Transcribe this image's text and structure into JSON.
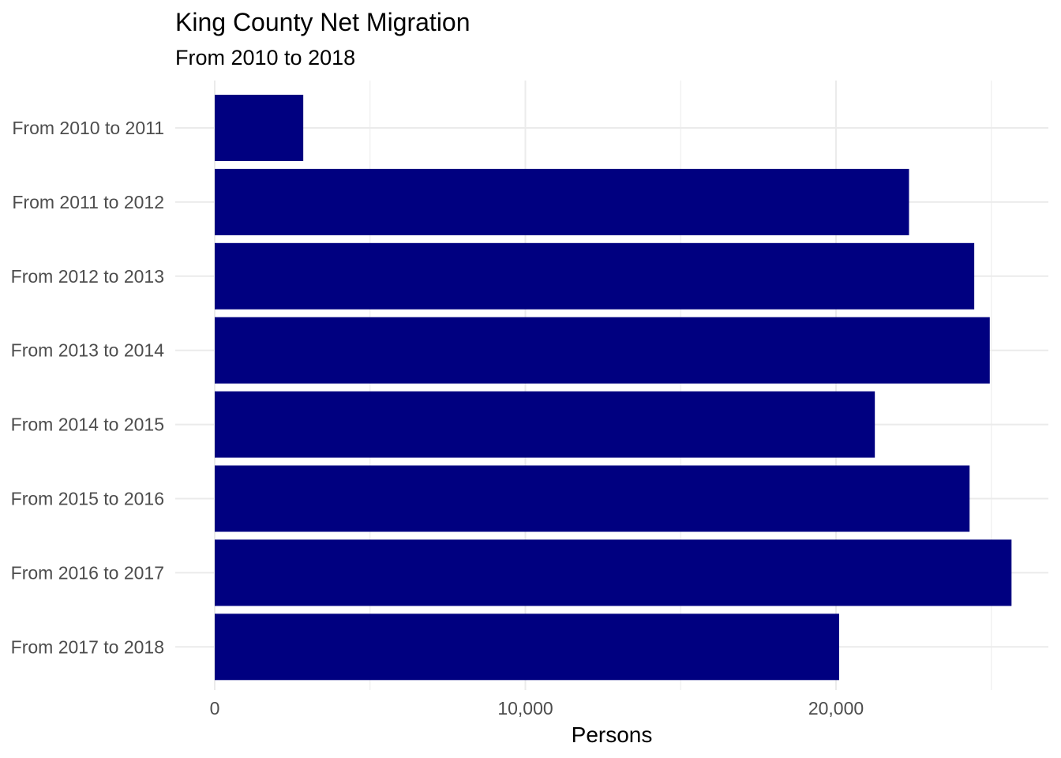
{
  "chart_data": {
    "type": "bar",
    "orientation": "horizontal",
    "title": "King County Net Migration",
    "subtitle": "From 2010 to 2018",
    "xlabel": "Persons",
    "ylabel": "",
    "categories": [
      "From 2010 to 2011",
      "From 2011 to 2012",
      "From 2012 to 2013",
      "From 2013 to 2014",
      "From 2014 to 2015",
      "From 2015 to 2016",
      "From 2016 to 2017",
      "From 2017 to 2018"
    ],
    "values": [
      2850,
      22350,
      24450,
      24950,
      21250,
      24300,
      25650,
      20100
    ],
    "xlim": [
      0,
      27000
    ],
    "x_ticks": [
      0,
      10000,
      20000
    ],
    "x_tick_labels": [
      "0",
      "10,000",
      "20,000"
    ],
    "grid": true,
    "legend": "none",
    "bar_color": "#000080",
    "grid_color": "#ebebeb"
  }
}
